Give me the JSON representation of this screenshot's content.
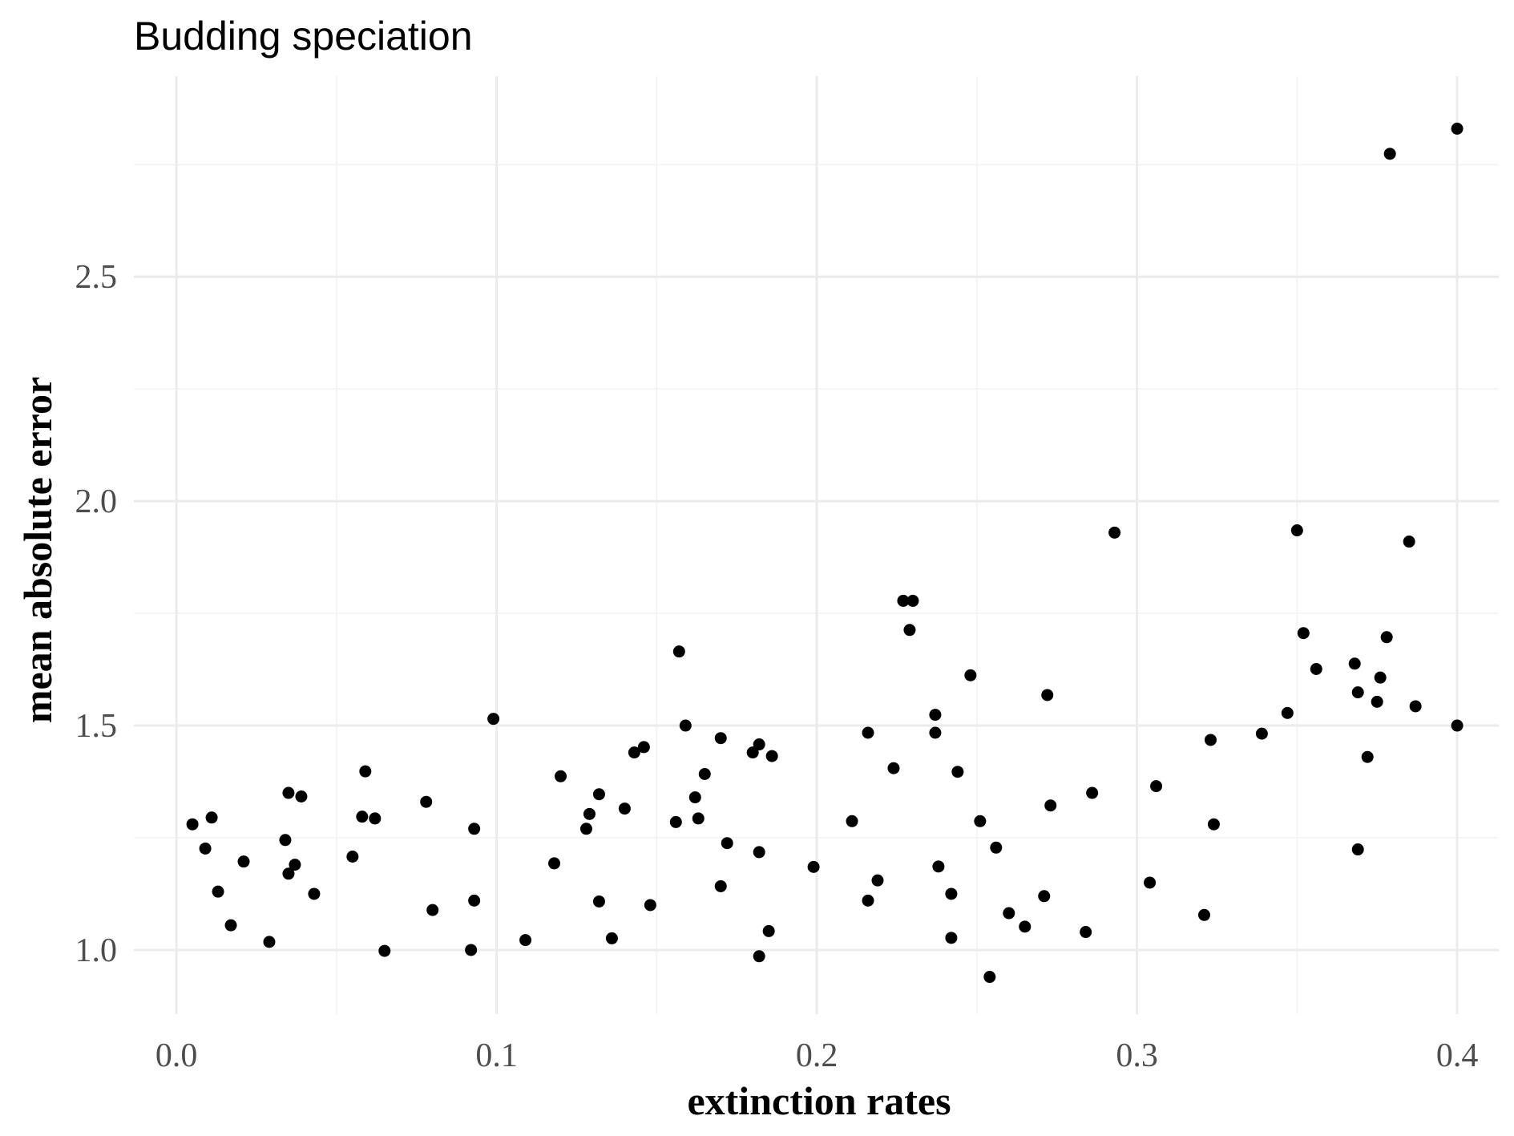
{
  "chart_data": {
    "type": "scatter",
    "title": "Budding speciation",
    "xlabel": "extinction rates",
    "ylabel": "mean absolute error",
    "xlim": [
      -0.0133,
      0.413
    ],
    "ylim": [
      0.857,
      2.947
    ],
    "x_ticks": [
      0.0,
      0.1,
      0.2,
      0.3,
      0.4
    ],
    "x_tick_labels": [
      "0.0",
      "0.1",
      "0.2",
      "0.3",
      "0.4"
    ],
    "y_ticks": [
      1.0,
      1.5,
      2.0,
      2.5
    ],
    "y_tick_labels": [
      "1.0",
      "1.5",
      "2.0",
      "2.5"
    ],
    "grid": true,
    "point_color": "#000000",
    "points": [
      [
        0.005,
        1.28
      ],
      [
        0.009,
        1.226
      ],
      [
        0.011,
        1.295
      ],
      [
        0.013,
        1.13
      ],
      [
        0.017,
        1.055
      ],
      [
        0.021,
        1.197
      ],
      [
        0.029,
        1.018
      ],
      [
        0.034,
        1.245
      ],
      [
        0.035,
        1.35
      ],
      [
        0.035,
        1.17
      ],
      [
        0.037,
        1.19
      ],
      [
        0.039,
        1.342
      ],
      [
        0.043,
        1.125
      ],
      [
        0.055,
        1.208
      ],
      [
        0.058,
        1.297
      ],
      [
        0.059,
        1.398
      ],
      [
        0.062,
        1.293
      ],
      [
        0.065,
        0.998
      ],
      [
        0.078,
        1.33
      ],
      [
        0.08,
        1.089
      ],
      [
        0.092,
        1.0
      ],
      [
        0.093,
        1.27
      ],
      [
        0.093,
        1.11
      ],
      [
        0.099,
        1.515
      ],
      [
        0.109,
        1.022
      ],
      [
        0.118,
        1.193
      ],
      [
        0.12,
        1.387
      ],
      [
        0.128,
        1.27
      ],
      [
        0.129,
        1.303
      ],
      [
        0.132,
        1.347
      ],
      [
        0.132,
        1.108
      ],
      [
        0.136,
        1.026
      ],
      [
        0.14,
        1.315
      ],
      [
        0.143,
        1.44
      ],
      [
        0.146,
        1.452
      ],
      [
        0.148,
        1.1
      ],
      [
        0.156,
        1.285
      ],
      [
        0.157,
        1.665
      ],
      [
        0.159,
        1.5
      ],
      [
        0.162,
        1.34
      ],
      [
        0.163,
        1.293
      ],
      [
        0.165,
        1.392
      ],
      [
        0.17,
        1.472
      ],
      [
        0.17,
        1.142
      ],
      [
        0.172,
        1.238
      ],
      [
        0.18,
        1.44
      ],
      [
        0.182,
        1.458
      ],
      [
        0.182,
        1.218
      ],
      [
        0.182,
        0.986
      ],
      [
        0.185,
        1.042
      ],
      [
        0.186,
        1.432
      ],
      [
        0.199,
        1.185
      ],
      [
        0.211,
        1.287
      ],
      [
        0.216,
        1.484
      ],
      [
        0.216,
        1.11
      ],
      [
        0.219,
        1.155
      ],
      [
        0.224,
        1.405
      ],
      [
        0.227,
        1.778
      ],
      [
        0.23,
        1.778
      ],
      [
        0.229,
        1.713
      ],
      [
        0.237,
        1.524
      ],
      [
        0.237,
        1.484
      ],
      [
        0.238,
        1.186
      ],
      [
        0.242,
        1.125
      ],
      [
        0.242,
        1.027
      ],
      [
        0.244,
        1.397
      ],
      [
        0.248,
        1.612
      ],
      [
        0.251,
        1.287
      ],
      [
        0.254,
        0.94
      ],
      [
        0.256,
        1.228
      ],
      [
        0.26,
        1.082
      ],
      [
        0.265,
        1.052
      ],
      [
        0.271,
        1.12
      ],
      [
        0.272,
        1.568
      ],
      [
        0.273,
        1.322
      ],
      [
        0.284,
        1.04
      ],
      [
        0.286,
        1.35
      ],
      [
        0.293,
        1.93
      ],
      [
        0.304,
        1.15
      ],
      [
        0.306,
        1.365
      ],
      [
        0.321,
        1.078
      ],
      [
        0.323,
        1.468
      ],
      [
        0.324,
        1.28
      ],
      [
        0.339,
        1.482
      ],
      [
        0.347,
        1.528
      ],
      [
        0.35,
        1.935
      ],
      [
        0.352,
        1.706
      ],
      [
        0.356,
        1.626
      ],
      [
        0.368,
        1.638
      ],
      [
        0.369,
        1.574
      ],
      [
        0.369,
        1.224
      ],
      [
        0.372,
        1.43
      ],
      [
        0.375,
        1.553
      ],
      [
        0.376,
        1.607
      ],
      [
        0.378,
        1.697
      ],
      [
        0.379,
        2.774
      ],
      [
        0.385,
        1.91
      ],
      [
        0.387,
        1.543
      ],
      [
        0.4,
        2.83
      ],
      [
        0.4,
        1.5
      ]
    ]
  }
}
